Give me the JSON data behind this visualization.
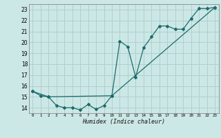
{
  "xlabel": "Humidex (Indice chaleur)",
  "xlim": [
    -0.5,
    23.5
  ],
  "ylim": [
    13.5,
    23.5
  ],
  "yticks": [
    14,
    15,
    16,
    17,
    18,
    19,
    20,
    21,
    22,
    23
  ],
  "xticks": [
    0,
    1,
    2,
    3,
    4,
    5,
    6,
    7,
    8,
    9,
    10,
    11,
    12,
    13,
    14,
    15,
    16,
    17,
    18,
    19,
    20,
    21,
    22,
    23
  ],
  "bg_color": "#cce8e6",
  "grid_color": "#b0cfcd",
  "line_color": "#1a6b6b",
  "line1_x": [
    0,
    1,
    2,
    3,
    4,
    5,
    6,
    7,
    8,
    9,
    10,
    11,
    12,
    13,
    14,
    15,
    16,
    17,
    18,
    19,
    20,
    21,
    22,
    23
  ],
  "line1_y": [
    15.5,
    15.1,
    15.0,
    14.2,
    14.0,
    14.0,
    13.8,
    14.3,
    13.85,
    14.2,
    15.1,
    20.1,
    19.6,
    16.8,
    19.5,
    20.5,
    21.5,
    21.5,
    21.2,
    21.2,
    22.2,
    23.1,
    23.1,
    23.2
  ],
  "line2_x": [
    0,
    2,
    10,
    23
  ],
  "line2_y": [
    15.5,
    15.0,
    15.1,
    23.2
  ]
}
